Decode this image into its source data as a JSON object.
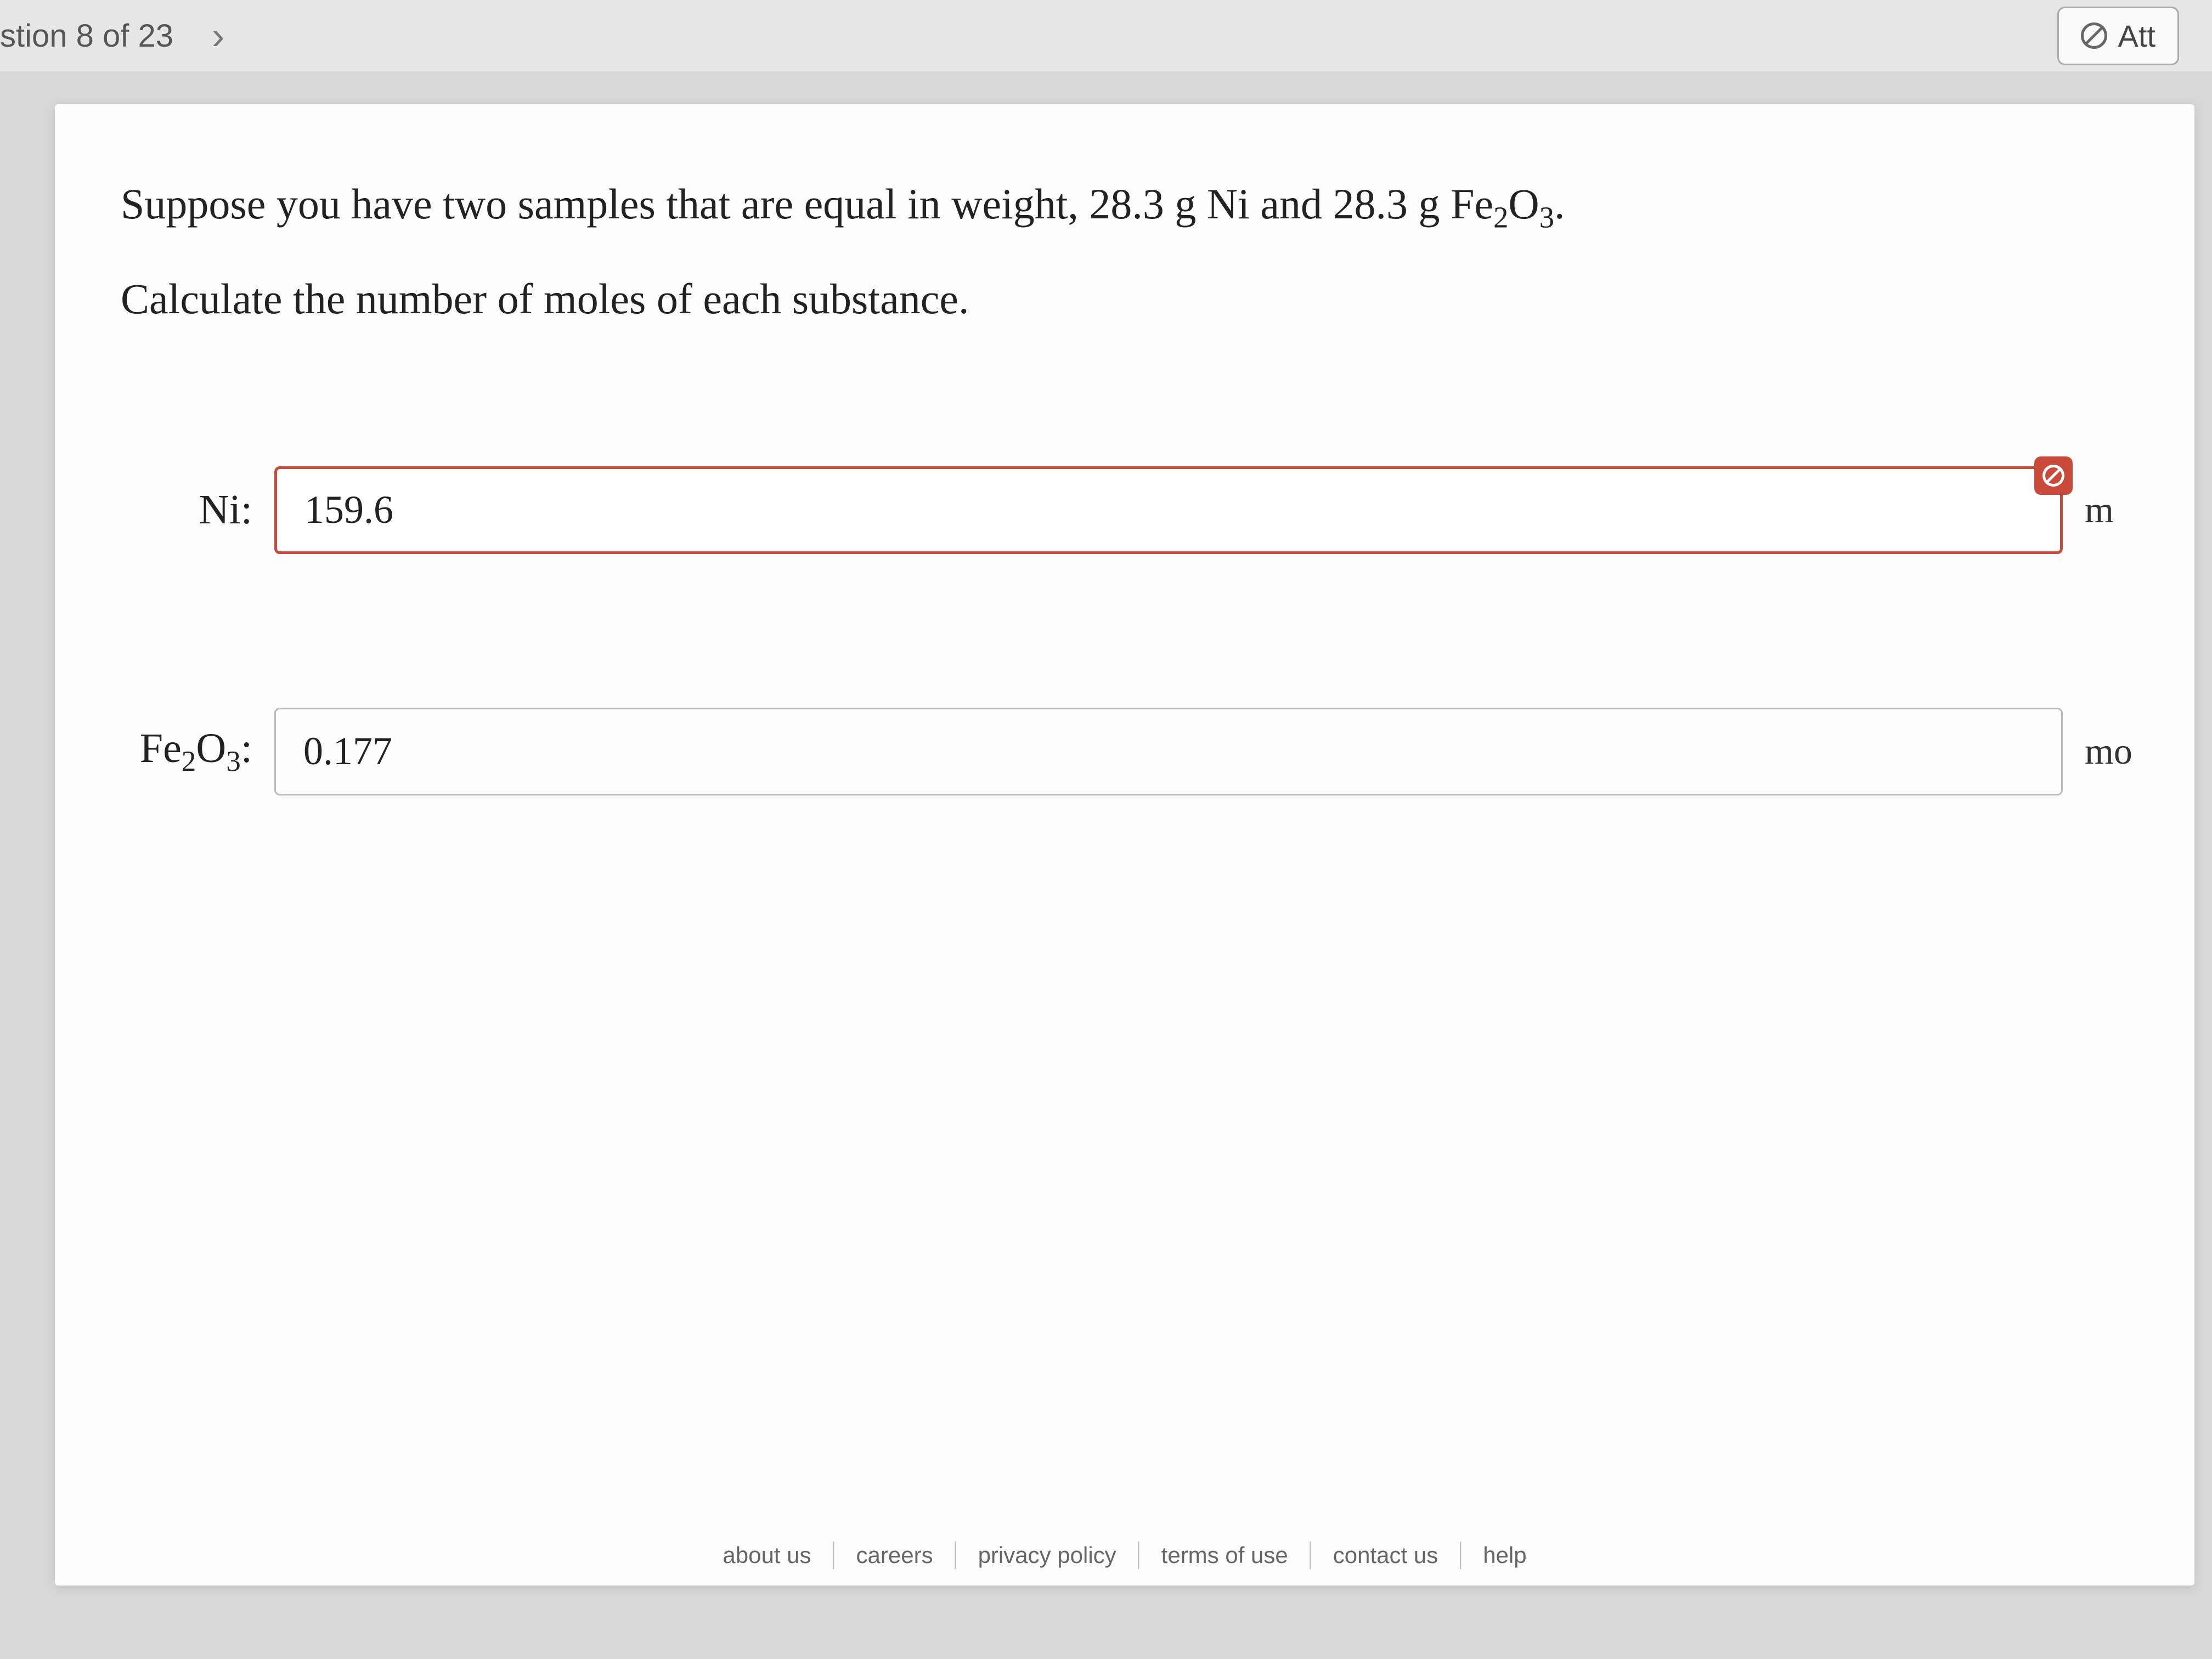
{
  "header": {
    "counter": "stion 8 of 23",
    "next_symbol": "›",
    "attempts_label": "Att"
  },
  "question": {
    "line1_pre": "Suppose you have two samples that are equal in weight, 28.3 g Ni and 28.3 g ",
    "compound_html": "Fe₂O₃",
    "line1_post": ".",
    "line2": "Calculate the number of moles of each substance."
  },
  "answers": {
    "ni": {
      "label": "Ni:",
      "value": "159.6",
      "unit": "m",
      "error": true
    },
    "fe2o3": {
      "label_html": "Fe₂O₃:",
      "value": "0.177",
      "unit": "mo",
      "error": false
    }
  },
  "footer": {
    "links": [
      "about us",
      "careers",
      "privacy policy",
      "terms of use",
      "contact us",
      "help"
    ]
  },
  "colors": {
    "error": "#c94a3b",
    "card_bg": "#fcfcfc",
    "page_bg": "#d8d8d8",
    "text": "#222222"
  }
}
